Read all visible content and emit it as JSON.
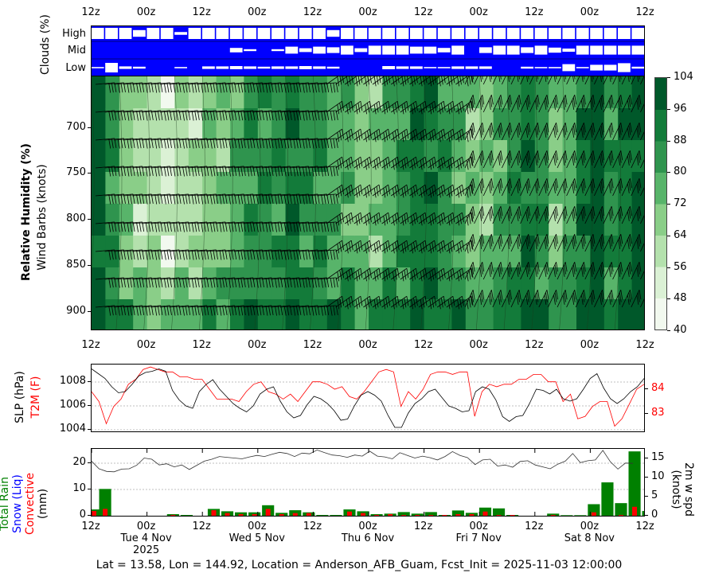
{
  "figure": {
    "footer": "Lat = 13.58, Lon = 144.92, Location = Anderson_AFB_Guam, Fcst_Init = 2025-11-03 12:00:00"
  },
  "time_axis": {
    "hour_ticks": [
      "12z",
      "00z",
      "12z",
      "00z",
      "12z",
      "00z",
      "12z",
      "00z",
      "12z",
      "00z",
      "12z"
    ],
    "date_labels": [
      {
        "label": "Tue 4 Nov",
        "sub": "2025",
        "tick_index": 1
      },
      {
        "label": "Wed 5 Nov",
        "sub": "",
        "tick_index": 3
      },
      {
        "label": "Thu 6 Nov",
        "sub": "",
        "tick_index": 5
      },
      {
        "label": "Fri 7 Nov",
        "sub": "",
        "tick_index": 7
      },
      {
        "label": "Sat 8 Nov",
        "sub": "",
        "tick_index": 9
      }
    ]
  },
  "colors": {
    "cloud_blue": "#0000ff",
    "rain_green": "#008000",
    "snow_blue": "#0000ff",
    "convective_red": "#ff0000",
    "t2m_red": "#ff0000",
    "slp_black": "#000000",
    "rh_colormap": [
      "#f2f9ef",
      "#dbf1d5",
      "#b4e1ad",
      "#8ace88",
      "#58b46a",
      "#2f944e",
      "#137b3a",
      "#00582a"
    ]
  },
  "chart_data": [
    {
      "type": "heatmap",
      "title": "Clouds (%)",
      "ylabel": "Clouds (%)",
      "rows": [
        "High",
        "Mid",
        "Low"
      ],
      "n_columns": 40,
      "note": "Fraction of white box height indicates cloud cover; 1.0 = full cell",
      "high": [
        1,
        1,
        1,
        0.6,
        1,
        1,
        0.25,
        1,
        1,
        1,
        1,
        1,
        1,
        1,
        1,
        1,
        1,
        0.6,
        1,
        1,
        1,
        1,
        1,
        1,
        1,
        1,
        1,
        1,
        1,
        1,
        1,
        1,
        1,
        1,
        1,
        1,
        1,
        1,
        1,
        1
      ],
      "mid": [
        0,
        0,
        0,
        0,
        0,
        0,
        0,
        0,
        0,
        0,
        0.35,
        0.15,
        0,
        0.15,
        0.55,
        0.3,
        0.55,
        0.45,
        0.7,
        0.3,
        0.7,
        0.7,
        0.7,
        0.55,
        0.55,
        0.35,
        0.7,
        0,
        0.45,
        0.7,
        0.7,
        0.45,
        0.7,
        0.4,
        0.25,
        0.7,
        0.7,
        0.7,
        0.7,
        0.7
      ],
      "low": [
        0.1,
        0.75,
        0.2,
        0.15,
        0,
        0,
        0.1,
        0,
        0.2,
        0.2,
        0.25,
        0.2,
        0.15,
        0.2,
        0.2,
        0.25,
        0.2,
        0.15,
        0,
        0,
        0,
        0.25,
        0.2,
        0.2,
        0.1,
        0.1,
        0.2,
        0.2,
        0.2,
        0,
        0,
        0.15,
        0.1,
        0.1,
        0.55,
        0.1,
        0.45,
        0.45,
        0.7,
        0.15
      ]
    },
    {
      "type": "heatmap",
      "title": "Relative Humidity (%) / Wind Barbs (knots)",
      "ylabel": "Relative Humidity (%)",
      "ylabel2": "Wind Barbs (knots)",
      "yaxis": "pressure (hPa)",
      "yticks": [
        700,
        750,
        800,
        850,
        900
      ],
      "ylim": [
        925,
        645
      ],
      "colorbar": {
        "ticks": [
          40,
          48,
          56,
          64,
          72,
          80,
          88,
          96,
          104
        ],
        "range": [
          40,
          104
        ]
      },
      "description": "Moist layer early (12z Nov 3), dry 45-65% mid-levels through Nov 4, becoming 75-95% from Nov 5 onward; light winds turning strong NE/E flow from Nov 6"
    },
    {
      "type": "line",
      "title": "SLP (hPa) / T2M (F)",
      "ylabel": "SLP (hPa)",
      "ylabel_right": "T2M (F)",
      "yticks": [
        1004,
        1006,
        1008
      ],
      "yticks_right": [
        83,
        84
      ],
      "ylim": [
        1003.9,
        1009.6
      ],
      "grid": true,
      "series": [
        {
          "name": "SLP",
          "color": "#000000",
          "values": [
            1009.1,
            1008.7,
            1008.3,
            1007.6,
            1007.1,
            1007.2,
            1007.8,
            1008.5,
            1008.8,
            1008.9,
            1009.1,
            1008.9,
            1007.3,
            1006.5,
            1006.0,
            1005.8,
            1007.2,
            1007.8,
            1008.2,
            1007.4,
            1006.8,
            1006.2,
            1005.8,
            1005.5,
            1006.0,
            1007.0,
            1007.4,
            1007.6,
            1006.4,
            1005.5,
            1005.0,
            1005.2,
            1006.1,
            1006.8,
            1006.6,
            1006.2,
            1005.6,
            1004.8,
            1004.9,
            1006.0,
            1006.9,
            1007.2,
            1006.9,
            1006.4,
            1005.2,
            1004.2,
            1004.2,
            1005.4,
            1006.2,
            1006.6,
            1007.2,
            1007.4,
            1006.7,
            1006.0,
            1005.8,
            1005.5,
            1005.6,
            1007.2,
            1007.6,
            1007.4,
            1006.5,
            1005.1,
            1004.7,
            1005.1,
            1005.2,
            1006.2,
            1007.4,
            1007.3,
            1007.0,
            1007.4,
            1006.6,
            1006.4,
            1006.6,
            1007.4,
            1008.3,
            1008.7,
            1007.5,
            1006.6,
            1006.2,
            1006.6,
            1007.2,
            1007.6,
            1008.3
          ]
        },
        {
          "name": "T2M",
          "color": "#ff0000",
          "values": [
            83.9,
            83.5,
            82.6,
            83.3,
            83.6,
            84.2,
            84.4,
            84.8,
            84.9,
            84.8,
            84.7,
            84.7,
            84.5,
            84.5,
            84.4,
            84.4,
            84.0,
            83.6,
            83.6,
            83.6,
            83.5,
            83.9,
            84.2,
            84.3,
            83.9,
            83.8,
            83.6,
            83.8,
            83.5,
            83.9,
            84.3,
            84.3,
            84.2,
            84.0,
            84.1,
            83.7,
            83.6,
            83.9,
            84.3,
            84.7,
            84.8,
            84.7,
            83.3,
            83.9,
            83.6,
            84.0,
            84.6,
            84.7,
            84.7,
            84.6,
            84.7,
            84.7,
            82.9,
            83.9,
            84.2,
            84.1,
            84.2,
            84.2,
            84.4,
            84.4,
            84.6,
            84.6,
            84.3,
            84.3,
            83.5,
            83.8,
            82.8,
            82.9,
            83.3,
            83.5,
            83.5,
            82.5,
            82.8,
            83.4,
            84.0,
            84.2
          ]
        }
      ]
    },
    {
      "type": "bar",
      "title": "Precipitation (mm) / 2m wind speed (knots)",
      "ylabel": "Total Rain / Snow (Liq) / Convective (mm)",
      "ylabel_right": "2m w spd (knots)",
      "yticks": [
        0,
        10,
        20
      ],
      "yticks_right": [
        0,
        5,
        10,
        15
      ],
      "ylim": [
        0,
        25.5
      ],
      "ylim_right": [
        0,
        17.5
      ],
      "legend": [
        "Total Rain",
        "Snow (Liq)",
        "Convective"
      ],
      "series": [
        {
          "name": "Total Rain",
          "color": "#008000",
          "values": [
            2.4,
            10.2,
            0,
            0,
            0,
            0,
            0.6,
            0.3,
            0,
            2.6,
            1.7,
            1.3,
            1.3,
            4.0,
            1.1,
            2.1,
            1.3,
            0.3,
            0.3,
            2.4,
            1.7,
            0.6,
            0.8,
            1.4,
            0.8,
            1.4,
            0.3,
            2.0,
            1.1,
            3.1,
            2.8,
            0.3,
            0,
            0,
            0.8,
            0.2,
            0.2,
            4.4,
            12.7,
            4.8,
            24.5,
            1.8,
            0.8
          ]
        },
        {
          "name": "Snow (Liq)",
          "color": "#0000ff",
          "values": [
            0,
            0,
            0,
            0,
            0,
            0,
            0,
            0,
            0,
            0,
            0,
            0,
            0,
            0,
            0,
            0,
            0,
            0,
            0,
            0,
            0,
            0,
            0,
            0,
            0,
            0,
            0,
            0,
            0,
            0,
            0,
            0,
            0,
            0,
            0,
            0,
            0,
            0,
            0,
            0,
            0,
            0,
            0
          ]
        },
        {
          "name": "Convective",
          "color": "#ff0000",
          "values": [
            1.8,
            2.6,
            0,
            0,
            0,
            0,
            0.3,
            0,
            0,
            2.1,
            1.0,
            0.6,
            0.6,
            2.6,
            0.6,
            1.0,
            1.0,
            0,
            0,
            1.6,
            1.0,
            0.3,
            0.6,
            0.3,
            0.3,
            0.3,
            0.3,
            0.6,
            0.6,
            1.6,
            0.3,
            0.3,
            0,
            0,
            0.3,
            0,
            0,
            1.3,
            0,
            0.3,
            3.4,
            0.6,
            0.6
          ]
        },
        {
          "name": "2m wind speed",
          "color": "#000000",
          "axis": "right",
          "values": [
            14.3,
            12.3,
            11.6,
            11.5,
            12.2,
            12.3,
            13.2,
            15.1,
            14.8,
            13.3,
            13.6,
            12.8,
            13.3,
            12.1,
            13.2,
            14.3,
            14.8,
            15.5,
            15.3,
            15.1,
            14.9,
            15.4,
            15.8,
            15.5,
            16.1,
            16.6,
            16.3,
            15.5,
            16.4,
            16.2,
            17.2,
            16.5,
            15.9,
            15.7,
            15.3,
            15.9,
            15.6,
            16.9,
            15.6,
            15.4,
            14.9,
            16.5,
            15.8,
            15.1,
            15.6,
            15.2,
            14.6,
            15.5,
            16.8,
            15.8,
            15.2,
            13.4,
            14.6,
            14.8,
            13.0,
            13.3,
            12.7,
            14.2,
            14.4,
            13.3,
            12.8,
            12.3,
            13.5,
            14.3,
            16.3,
            13.9,
            14.4,
            14.6,
            17.1,
            14.1,
            12.2,
            13.8,
            13.7
          ]
        }
      ]
    }
  ]
}
